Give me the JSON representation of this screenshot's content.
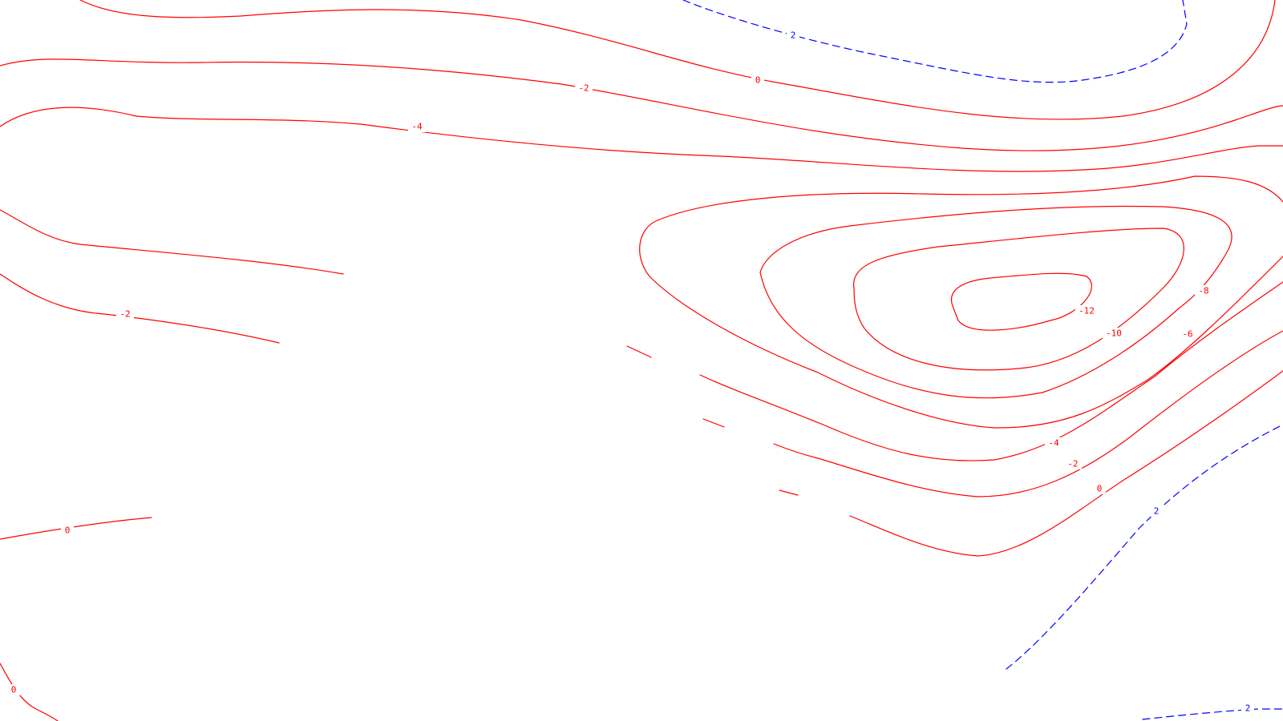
{
  "map": {
    "type": "contour",
    "colors": {
      "negative": "#ff0000",
      "positive": "#0000ff",
      "background": "#ffffff"
    },
    "labels": {
      "l_pos2_top": "2",
      "l_zero_top": "0",
      "l_neg2_top": "-2",
      "l_neg4_top": "-4",
      "l_neg2_left": "-2",
      "l_zero_left": "0",
      "l_zero_corner": "0",
      "l_neg12": "-12",
      "l_neg10": "-10",
      "l_neg8": "-8",
      "l_neg6": "-6",
      "l_neg4_right": "-4",
      "l_neg2_right": "-2",
      "l_zero_right": "0",
      "l_pos2_right": "2",
      "l_pos2_bottom": "2"
    }
  }
}
